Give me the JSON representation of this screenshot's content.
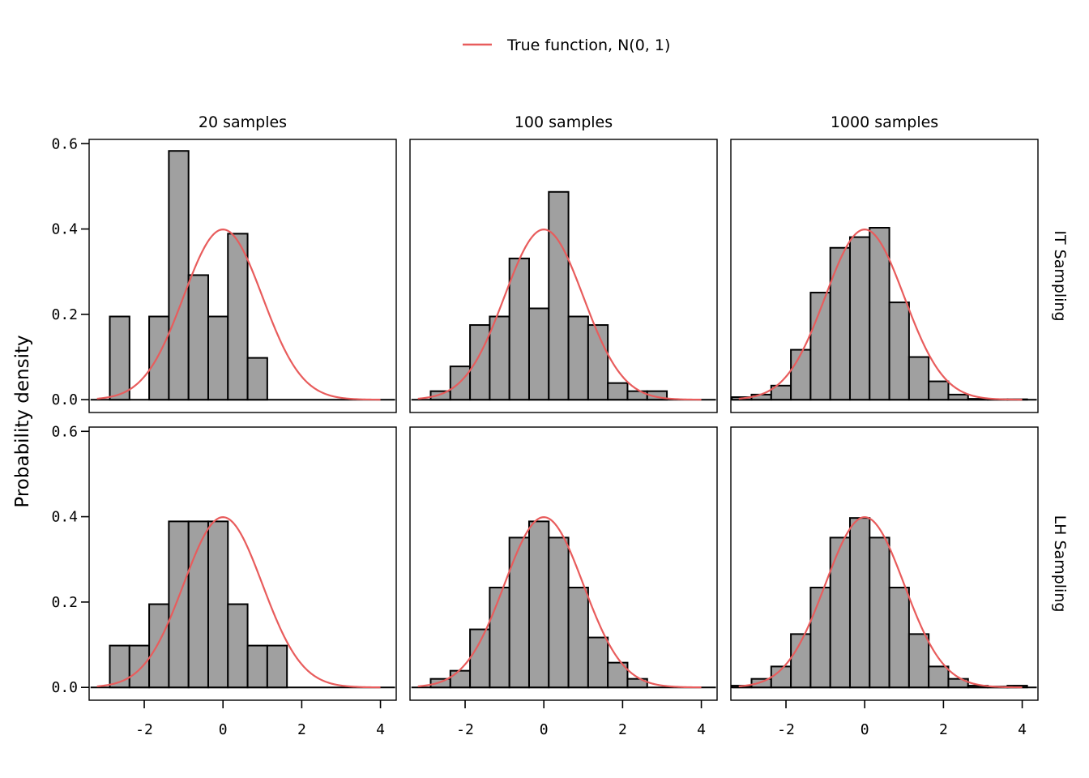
{
  "legend": {
    "label": "True function, N(0, 1)",
    "color": "#e85c5c"
  },
  "ylabel": "Probability density",
  "bar_color": "#a0a0a0",
  "chart_data": {
    "type": "bar",
    "subtype": "histogram-facet-grid",
    "columns": [
      "20 samples",
      "100 samples",
      "1000 samples"
    ],
    "rows": [
      "IT Sampling",
      "LH Sampling"
    ],
    "xlim": [
      -3.4,
      4.4
    ],
    "ylim": [
      -0.03,
      0.61
    ],
    "x_ticks": [
      "-2",
      "0",
      "2",
      "4"
    ],
    "x_tick_values": [
      -2,
      0,
      2,
      4
    ],
    "y_ticks": [
      "0.0",
      "0.2",
      "0.4",
      "0.6"
    ],
    "y_tick_values": [
      0.0,
      0.2,
      0.4,
      0.6
    ],
    "bin_start": -3.375,
    "bin_width": 0.5,
    "curve": {
      "name": "True function, N(0, 1)",
      "mean": 0,
      "sd": 1,
      "x_range": [
        -3.2,
        4.0
      ]
    },
    "panels": [
      {
        "row": "IT Sampling",
        "column": "20 samples",
        "bin_values": [
          0,
          0.195,
          0,
          0.195,
          0.583,
          0.292,
          0.195,
          0.389,
          0.098,
          0,
          0,
          0,
          0,
          0,
          0
        ]
      },
      {
        "row": "IT Sampling",
        "column": "100 samples",
        "bin_values": [
          0,
          0.02,
          0.078,
          0.175,
          0.195,
          0.331,
          0.214,
          0.487,
          0.195,
          0.175,
          0.039,
          0.02,
          0.02,
          0,
          0
        ]
      },
      {
        "row": "IT Sampling",
        "column": "1000 samples",
        "bin_values": [
          0.006,
          0.012,
          0.033,
          0.117,
          0.251,
          0.356,
          0.381,
          0.403,
          0.228,
          0.1,
          0.043,
          0.012,
          0.002,
          0.001,
          0.001
        ]
      },
      {
        "row": "LH Sampling",
        "column": "20 samples",
        "bin_values": [
          0,
          0.098,
          0.098,
          0.195,
          0.389,
          0.389,
          0.389,
          0.195,
          0.098,
          0.098,
          0,
          0,
          0,
          0,
          0
        ]
      },
      {
        "row": "LH Sampling",
        "column": "100 samples",
        "bin_values": [
          0,
          0.02,
          0.039,
          0.136,
          0.234,
          0.351,
          0.389,
          0.351,
          0.234,
          0.117,
          0.058,
          0.02,
          0,
          0,
          0
        ]
      },
      {
        "row": "LH Sampling",
        "column": "1000 samples",
        "bin_values": [
          0.004,
          0.02,
          0.049,
          0.125,
          0.234,
          0.351,
          0.397,
          0.351,
          0.234,
          0.125,
          0.049,
          0.02,
          0.004,
          0.002,
          0.004
        ]
      }
    ]
  }
}
